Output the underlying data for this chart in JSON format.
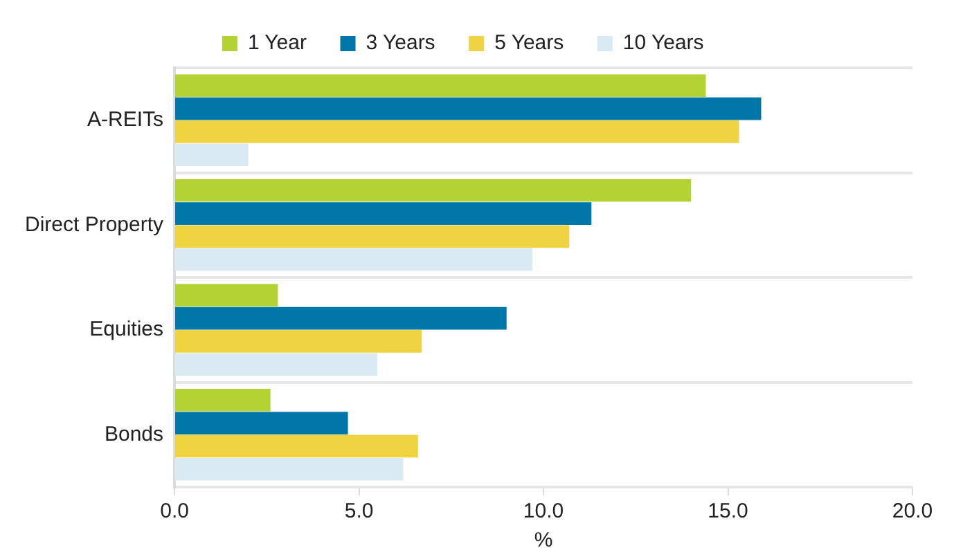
{
  "chart_data": {
    "type": "bar",
    "orientation": "horizontal",
    "xlabel": "%",
    "categories": [
      "A-REITs",
      "Direct Property",
      "Equities",
      "Bonds"
    ],
    "series": [
      {
        "name": "1 Year",
        "color": "#b3d334",
        "values": [
          14.4,
          14.0,
          2.8,
          2.6
        ]
      },
      {
        "name": "3 Years",
        "color": "#0077a8",
        "values": [
          15.9,
          11.3,
          9.0,
          4.7
        ]
      },
      {
        "name": "5 Years",
        "color": "#f0d340",
        "values": [
          15.3,
          10.7,
          6.7,
          6.6
        ]
      },
      {
        "name": "10 Years",
        "color": "#daeaf2",
        "values": [
          2.0,
          9.7,
          5.5,
          6.2
        ]
      }
    ],
    "xlim": [
      0,
      20
    ],
    "xticks": [
      {
        "value": 0,
        "label": "0.0"
      },
      {
        "value": 5,
        "label": "5.0"
      },
      {
        "value": 10,
        "label": "10.0"
      },
      {
        "value": 15,
        "label": "15.0"
      },
      {
        "value": 20,
        "label": "20.0"
      }
    ],
    "grid": "y",
    "legend": "top"
  }
}
